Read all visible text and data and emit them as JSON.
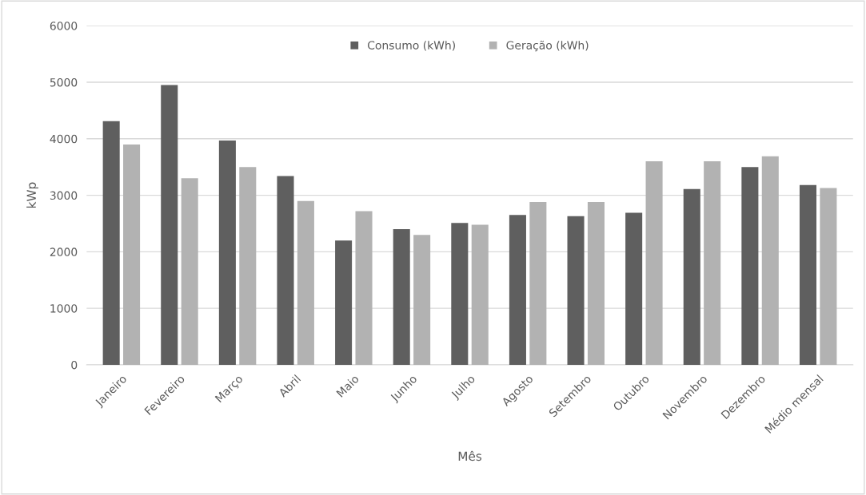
{
  "chart_data": {
    "type": "bar",
    "xlabel": "Mês",
    "ylabel": "kWp",
    "categories": [
      "Janeiro",
      "Fevereiro",
      "Março",
      "Abril",
      "Maio",
      "Junho",
      "Julho",
      "Agosto",
      "Setembro",
      "Outubro",
      "Novembro",
      "Dezembro",
      "Médio mensal"
    ],
    "series": [
      {
        "name": "Consumo (kWh)",
        "color": "#5f5f5f",
        "values": [
          4310,
          4950,
          3970,
          3340,
          2200,
          2400,
          2510,
          2650,
          2630,
          2690,
          3110,
          3500,
          3180
        ]
      },
      {
        "name": "Geração (kWh)",
        "color": "#b2b2b2",
        "values": [
          3900,
          3300,
          3500,
          2900,
          2720,
          2300,
          2480,
          2880,
          2880,
          3600,
          3600,
          3690,
          3130
        ]
      }
    ],
    "ylim": [
      0,
      6000
    ],
    "yticks": [
      0,
      1000,
      2000,
      3000,
      4000,
      5000,
      6000
    ],
    "grid": "y",
    "legend": "top"
  }
}
